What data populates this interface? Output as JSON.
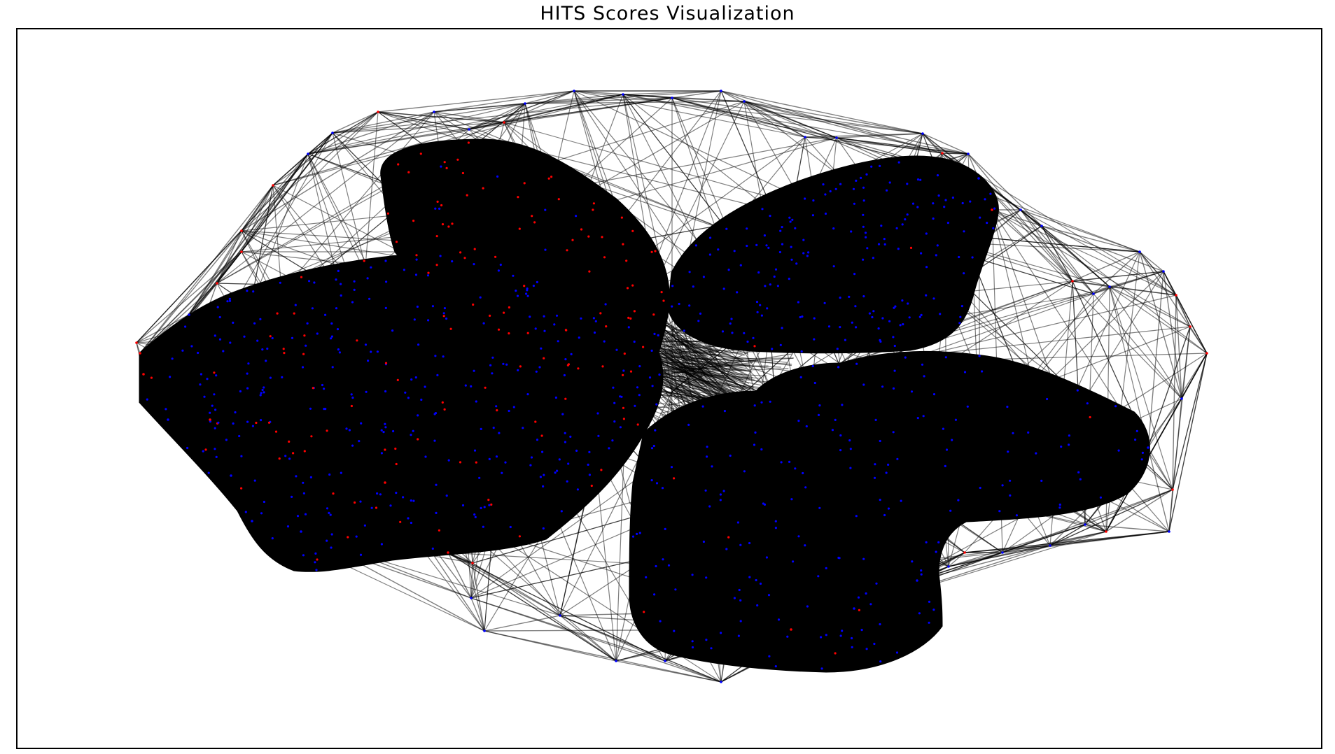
{
  "title": "HITS Scores Visualization",
  "style": {
    "edge_color": "#000000",
    "edge_opacity": 0.5,
    "background_color": "#ffffff",
    "frame_color": "#000000"
  },
  "legend": {
    "shown": false
  },
  "node_classes": [
    {
      "color": "#0000ff",
      "share_estimate": 0.8
    },
    {
      "color": "#ff0000",
      "share_estimate": 0.2
    }
  ],
  "clusters": [
    {
      "id": "upper-left",
      "node_color_mix": "mostly-red"
    },
    {
      "id": "left-large",
      "node_color_mix": "blue-and-red"
    },
    {
      "id": "upper-right",
      "node_color_mix": "mostly-blue"
    },
    {
      "id": "lower-right",
      "node_color_mix": "mostly-blue"
    }
  ],
  "layout": {
    "kind": "force-directed network",
    "axes_shown": false,
    "frame_shown": true
  }
}
